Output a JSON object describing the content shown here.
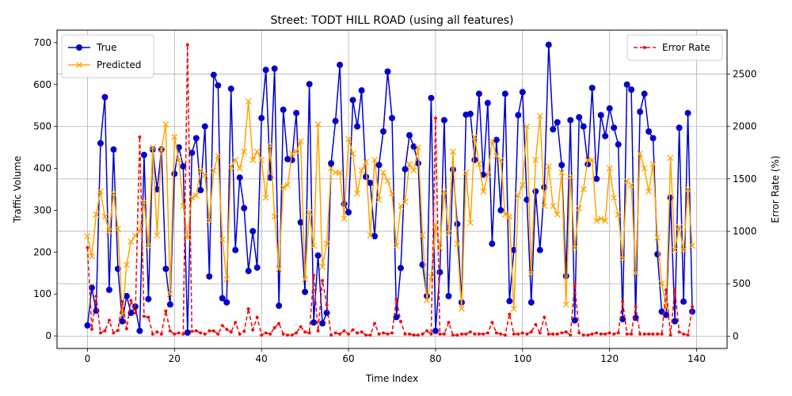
{
  "chart_data": {
    "type": "line",
    "title": "Street: TODT HILL ROAD (using all features)",
    "xlabel": "Time Index",
    "ylabel": "Traffic Volume",
    "ylabel_right": "Error Rate (%)",
    "xlim": [
      -7,
      147
    ],
    "ylim": [
      -30,
      730
    ],
    "ylim_right": [
      -118,
      2920
    ],
    "x_ticks": [
      0,
      20,
      40,
      60,
      80,
      100,
      120,
      140
    ],
    "y_ticks": [
      0,
      100,
      200,
      300,
      400,
      500,
      600,
      700
    ],
    "y_ticks_right": [
      0,
      500,
      1000,
      1500,
      2000,
      2500
    ],
    "grid": true,
    "legend_left_position": "upper-left",
    "legend_right_position": "upper-right",
    "series": [
      {
        "name": "True",
        "color": "#0000cc",
        "axis": "left",
        "marker": "circle",
        "values": [
          25,
          115,
          60,
          460,
          570,
          110,
          445,
          160,
          35,
          95,
          55,
          70,
          12,
          432,
          88,
          445,
          350,
          445,
          160,
          75,
          387,
          450,
          405,
          8,
          437,
          472,
          348,
          500,
          142,
          623,
          598,
          90,
          80,
          590,
          205,
          378,
          305,
          155,
          250,
          163,
          520,
          635,
          378,
          638,
          72,
          540,
          422,
          420,
          532,
          271,
          105,
          601,
          32,
          192,
          30,
          55,
          412,
          513,
          647,
          315,
          295,
          563,
          500,
          586,
          380,
          365,
          238,
          408,
          488,
          631,
          520,
          45,
          162,
          398,
          479,
          452,
          412,
          170,
          95,
          568,
          12,
          152,
          515,
          95,
          397,
          267,
          80,
          528,
          530,
          420,
          578,
          385,
          556,
          220,
          468,
          300,
          578,
          83,
          205,
          527,
          582,
          325,
          80,
          345,
          205,
          355,
          695,
          493,
          510,
          408,
          143,
          515,
          37,
          522,
          500,
          410,
          592,
          375,
          527,
          477,
          543,
          497,
          457,
          40,
          600,
          588,
          43,
          535,
          578,
          488,
          472,
          195,
          58,
          50,
          330,
          35,
          497,
          82,
          532,
          58
        ]
      },
      {
        "name": "Predicted",
        "color": "#ffa500",
        "axis": "left",
        "marker": "x",
        "values": [
          238,
          190,
          290,
          345,
          285,
          250,
          340,
          255,
          50,
          170,
          225,
          240,
          250,
          320,
          215,
          450,
          240,
          445,
          505,
          100,
          475,
          420,
          310,
          235,
          330,
          335,
          395,
          385,
          275,
          395,
          430,
          230,
          135,
          405,
          420,
          400,
          440,
          560,
          420,
          440,
          420,
          330,
          455,
          285,
          160,
          355,
          360,
          435,
          440,
          465,
          135,
          295,
          215,
          505,
          165,
          220,
          400,
          390,
          390,
          280,
          470,
          435,
          340,
          395,
          415,
          240,
          420,
          325,
          390,
          370,
          340,
          215,
          310,
          320,
          410,
          395,
          450,
          240,
          85,
          140,
          265,
          210,
          345,
          245,
          440,
          220,
          65,
          390,
          270,
          475,
          410,
          345,
          385,
          465,
          430,
          420,
          290,
          285,
          65,
          335,
          360,
          500,
          150,
          420,
          525,
          310,
          405,
          310,
          290,
          390,
          75,
          380,
          210,
          305,
          350,
          420,
          420,
          275,
          280,
          275,
          400,
          330,
          290,
          185,
          370,
          360,
          150,
          435,
          400,
          345,
          410,
          235,
          125,
          70,
          425,
          205,
          260,
          205,
          350,
          215
        ]
      },
      {
        "name": "Error Rate",
        "color": "#ee1111",
        "axis": "right",
        "marker": "dot",
        "values": [
          845,
          65,
          380,
          30,
          50,
          150,
          30,
          55,
          330,
          70,
          340,
          220,
          1900,
          190,
          180,
          20,
          40,
          20,
          240,
          50,
          20,
          30,
          20,
          2780,
          45,
          50,
          30,
          20,
          50,
          50,
          20,
          100,
          65,
          40,
          130,
          20,
          45,
          260,
          60,
          180,
          10,
          30,
          20,
          80,
          120,
          20,
          10,
          10,
          30,
          90,
          40,
          30,
          580,
          50,
          530,
          300,
          10,
          30,
          20,
          50,
          20,
          60,
          30,
          40,
          10,
          10,
          120,
          20,
          30,
          20,
          30,
          350,
          140,
          20,
          20,
          10,
          10,
          20,
          50,
          20,
          2080,
          20,
          20,
          130,
          10,
          10,
          20,
          20,
          40,
          20,
          20,
          20,
          30,
          130,
          30,
          20,
          10,
          210,
          20,
          20,
          30,
          20,
          40,
          110,
          30,
          180,
          20,
          20,
          20,
          30,
          40,
          10,
          500,
          30,
          10,
          10,
          20,
          30,
          20,
          20,
          30,
          20,
          30,
          330,
          20,
          20,
          280,
          20,
          20,
          20,
          20,
          20,
          20,
          440,
          10,
          450,
          40,
          20,
          10,
          280
        ]
      }
    ]
  }
}
